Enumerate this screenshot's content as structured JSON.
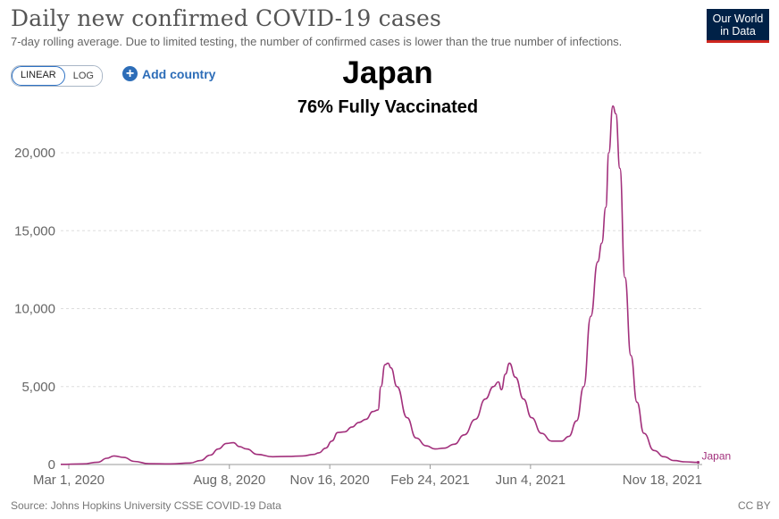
{
  "header": {
    "title": "Daily new confirmed COVID-19 cases",
    "subtitle": "7-day rolling average. Due to limited testing, the number of confirmed cases is lower than the true number of infections."
  },
  "logo": {
    "line1": "Our World",
    "line2": "in Data"
  },
  "controls": {
    "linear_label": "LINEAR",
    "log_label": "LOG",
    "active_scale": "linear",
    "add_country_label": "Add country"
  },
  "overlay": {
    "title": "Japan",
    "subtitle": "76% Fully Vaccinated"
  },
  "footer": {
    "source": "Source: Johns Hopkins University CSSE COVID-19 Data",
    "license": "CC BY"
  },
  "colors": {
    "series": "#a2307c",
    "grid": "#dddddd",
    "axis": "#666666",
    "logo_bg": "#002147",
    "logo_accent": "#ce261e",
    "link": "#2d6db8"
  },
  "icons": {
    "add_country": "plus-circle-icon"
  },
  "chart_data": {
    "type": "line",
    "title": "Daily new confirmed COVID-19 cases",
    "xlabel": "",
    "ylabel": "",
    "xlim": [
      "2020-02-22",
      "2021-11-22"
    ],
    "ylim": [
      0,
      23000
    ],
    "y_ticks": [
      0,
      5000,
      10000,
      15000,
      20000
    ],
    "y_tick_labels": [
      "0",
      "5,000",
      "10,000",
      "15,000",
      "20,000"
    ],
    "x_ticks": [
      "2020-03-01",
      "2020-08-08",
      "2020-11-16",
      "2021-02-24",
      "2021-06-04",
      "2021-11-18"
    ],
    "x_tick_labels": [
      "Mar 1, 2020",
      "Aug 8, 2020",
      "Nov 16, 2020",
      "Feb 24, 2021",
      "Jun 4, 2021",
      "Nov 18, 2021"
    ],
    "grid": true,
    "series": [
      {
        "name": "Japan",
        "points": [
          [
            "2020-02-22",
            10
          ],
          [
            "2020-03-15",
            40
          ],
          [
            "2020-03-30",
            150
          ],
          [
            "2020-04-08",
            400
          ],
          [
            "2020-04-15",
            550
          ],
          [
            "2020-04-25",
            450
          ],
          [
            "2020-05-05",
            200
          ],
          [
            "2020-05-20",
            50
          ],
          [
            "2020-06-10",
            40
          ],
          [
            "2020-06-30",
            100
          ],
          [
            "2020-07-10",
            250
          ],
          [
            "2020-07-20",
            600
          ],
          [
            "2020-07-28",
            1000
          ],
          [
            "2020-08-05",
            1350
          ],
          [
            "2020-08-12",
            1400
          ],
          [
            "2020-08-18",
            1150
          ],
          [
            "2020-08-25",
            1000
          ],
          [
            "2020-09-05",
            650
          ],
          [
            "2020-09-20",
            500
          ],
          [
            "2020-10-05",
            520
          ],
          [
            "2020-10-20",
            550
          ],
          [
            "2020-10-31",
            650
          ],
          [
            "2020-11-05",
            750
          ],
          [
            "2020-11-12",
            1050
          ],
          [
            "2020-11-18",
            1500
          ],
          [
            "2020-11-24",
            2050
          ],
          [
            "2020-12-01",
            2100
          ],
          [
            "2020-12-08",
            2400
          ],
          [
            "2020-12-15",
            2700
          ],
          [
            "2020-12-22",
            2900
          ],
          [
            "2020-12-29",
            3400
          ],
          [
            "2021-01-03",
            3500
          ],
          [
            "2021-01-06",
            5000
          ],
          [
            "2021-01-10",
            6400
          ],
          [
            "2021-01-13",
            6500
          ],
          [
            "2021-01-16",
            6200
          ],
          [
            "2021-01-22",
            5000
          ],
          [
            "2021-02-01",
            3000
          ],
          [
            "2021-02-10",
            1700
          ],
          [
            "2021-02-20",
            1200
          ],
          [
            "2021-03-01",
            1000
          ],
          [
            "2021-03-10",
            1050
          ],
          [
            "2021-03-20",
            1300
          ],
          [
            "2021-03-30",
            1900
          ],
          [
            "2021-04-10",
            2900
          ],
          [
            "2021-04-20",
            4200
          ],
          [
            "2021-04-28",
            5000
          ],
          [
            "2021-05-03",
            5300
          ],
          [
            "2021-05-06",
            4800
          ],
          [
            "2021-05-10",
            5800
          ],
          [
            "2021-05-14",
            6500
          ],
          [
            "2021-05-20",
            5600
          ],
          [
            "2021-05-28",
            4200
          ],
          [
            "2021-06-05",
            3000
          ],
          [
            "2021-06-15",
            2000
          ],
          [
            "2021-06-25",
            1500
          ],
          [
            "2021-07-05",
            1500
          ],
          [
            "2021-07-12",
            1800
          ],
          [
            "2021-07-20",
            2800
          ],
          [
            "2021-07-27",
            5000
          ],
          [
            "2021-08-03",
            9500
          ],
          [
            "2021-08-10",
            13000
          ],
          [
            "2021-08-14",
            14200
          ],
          [
            "2021-08-18",
            16500
          ],
          [
            "2021-08-21",
            20000
          ],
          [
            "2021-08-25",
            23000
          ],
          [
            "2021-08-28",
            22500
          ],
          [
            "2021-09-01",
            19000
          ],
          [
            "2021-09-06",
            12000
          ],
          [
            "2021-09-12",
            7000
          ],
          [
            "2021-09-18",
            4000
          ],
          [
            "2021-09-25",
            2000
          ],
          [
            "2021-10-05",
            900
          ],
          [
            "2021-10-15",
            500
          ],
          [
            "2021-10-25",
            250
          ],
          [
            "2021-11-05",
            170
          ],
          [
            "2021-11-18",
            140
          ]
        ]
      }
    ]
  }
}
